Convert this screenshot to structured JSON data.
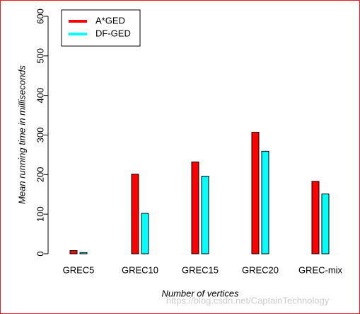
{
  "chart_data": {
    "type": "bar",
    "categories": [
      "GREC5",
      "GREC10",
      "GREC15",
      "GREC20",
      "GREC-mix"
    ],
    "series": [
      {
        "name": "A*GED",
        "color": "#ff0000",
        "values": [
          8,
          201,
          232,
          307,
          183
        ]
      },
      {
        "name": "DF-GED",
        "color": "#00ffff",
        "values": [
          3,
          102,
          196,
          259,
          151
        ]
      }
    ],
    "ylim": [
      0,
      600
    ],
    "yticks": [
      0,
      100,
      200,
      300,
      400,
      500,
      600
    ],
    "y_label": "Mean running time in milliseconds",
    "x_label": "Number of vertices",
    "legend": "top-left",
    "watermark": "https://blog.csdn.net/CaptainTechnology"
  }
}
